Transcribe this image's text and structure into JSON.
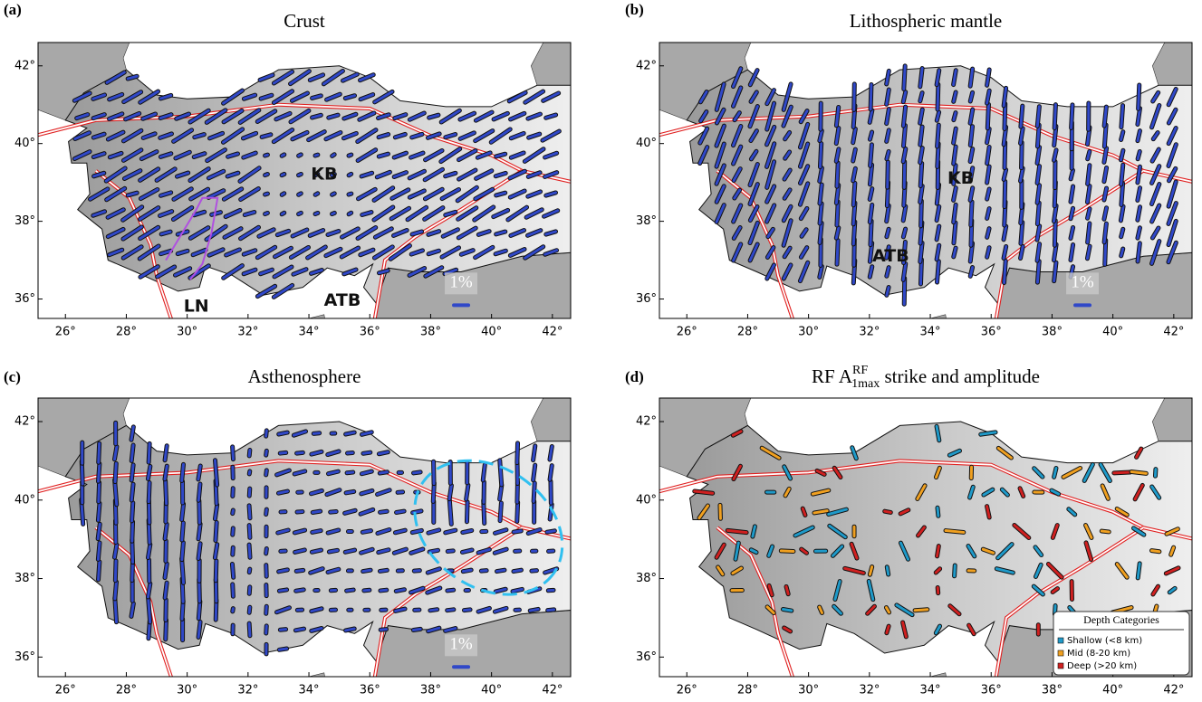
{
  "map": {
    "xlim": [
      25.1,
      42.6
    ],
    "ylim": [
      35.5,
      42.6
    ],
    "xticks": [
      {
        "value": 26,
        "label": "26°"
      },
      {
        "value": 28,
        "label": "28°"
      },
      {
        "value": 30,
        "label": "30°"
      },
      {
        "value": 32,
        "label": "32°"
      },
      {
        "value": 34,
        "label": "34°"
      },
      {
        "value": 36,
        "label": "36°"
      },
      {
        "value": 38,
        "label": "38°"
      },
      {
        "value": 40,
        "label": "40°"
      },
      {
        "value": 42,
        "label": "42°"
      }
    ],
    "yticks": [
      {
        "value": 36,
        "label": "36°"
      },
      {
        "value": 38,
        "label": "38°"
      },
      {
        "value": 40,
        "label": "40°"
      },
      {
        "value": 42,
        "label": "42°"
      }
    ]
  },
  "panels": [
    {
      "label": "(a)",
      "title": "Crust",
      "annotations": [
        "KB",
        "LN",
        "ATB",
        "1%"
      ]
    },
    {
      "label": "(b)",
      "title": "Lithospheric mantle",
      "annotations": [
        "KB",
        "ATB",
        "1%"
      ]
    },
    {
      "label": "(c)",
      "title": "Asthenosphere",
      "annotations": [
        "1%"
      ]
    },
    {
      "label": "(d)",
      "title": {
        "pre": "RF A",
        "sup": "RF",
        "sub": "1max",
        "post": " strike and amplitude"
      },
      "legend": {
        "title": "Depth Categories",
        "entries": [
          {
            "label": "Shallow (<8 km)",
            "color": "#1f9ac9"
          },
          {
            "label": "Mid (8-20 km)",
            "color": "#f0a020"
          },
          {
            "label": "Deep (>20 km)",
            "color": "#d02020"
          }
        ]
      }
    }
  ]
}
